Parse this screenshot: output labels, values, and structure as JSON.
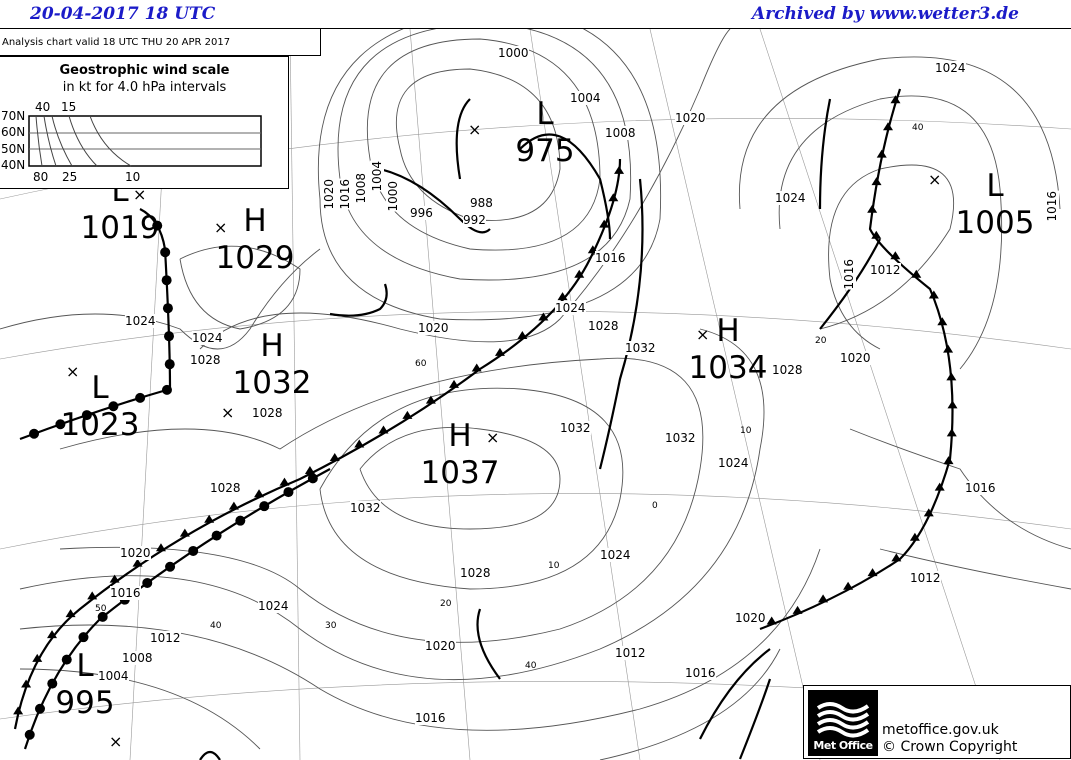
{
  "header": {
    "left": "20-04-2017  18 UTC",
    "right": "Archived by www.wetter3.de"
  },
  "valid_text": "Analysis chart  valid 18 UTC THU 20  APR 2017",
  "wind_scale": {
    "title": "Geostrophic wind scale",
    "subtitle": "in kt for 4.0 hPa intervals",
    "lat_labels": [
      "70N",
      "60N",
      "50N",
      "40N"
    ],
    "top_labels": [
      "40",
      "15"
    ],
    "bottom_labels": [
      "80",
      "25",
      "10"
    ]
  },
  "pressure_centers": [
    {
      "type": "L",
      "value": "975"
    },
    {
      "type": "L",
      "value": "1005"
    },
    {
      "type": "L",
      "value": "1019"
    },
    {
      "type": "H",
      "value": "1029"
    },
    {
      "type": "H",
      "value": "1032"
    },
    {
      "type": "L",
      "value": "1023"
    },
    {
      "type": "H",
      "value": "1037"
    },
    {
      "type": "H",
      "value": "1034"
    },
    {
      "type": "L",
      "value": "995"
    }
  ],
  "isobar_labels": [
    "1000",
    "1004",
    "1008",
    "1020",
    "1024",
    "1020",
    "1016",
    "1008",
    "1004",
    "1000",
    "996",
    "988",
    "992",
    "1016",
    "1024",
    "1028",
    "1024",
    "1020",
    "1024",
    "1028",
    "1032",
    "1016",
    "1012",
    "1016",
    "1020",
    "1028",
    "1032",
    "1024",
    "1032",
    "1028",
    "1020",
    "1016",
    "1024",
    "1028",
    "1024",
    "1020",
    "1012",
    "1008",
    "1004",
    "1016",
    "1012",
    "1016",
    "1020",
    "1012",
    "1016",
    "1024",
    "1032",
    "1028"
  ],
  "wind_labels": [
    "60",
    "50",
    "40",
    "30",
    "20",
    "10",
    "40",
    "10",
    "0",
    "20",
    "40"
  ],
  "footer": {
    "logo_text": "Met Office",
    "site": "metoffice.gov.uk",
    "copyright": "© Crown Copyright"
  },
  "colors": {
    "header_text": "#1b1bc8",
    "isobar": "#555555",
    "front": "#000000"
  }
}
